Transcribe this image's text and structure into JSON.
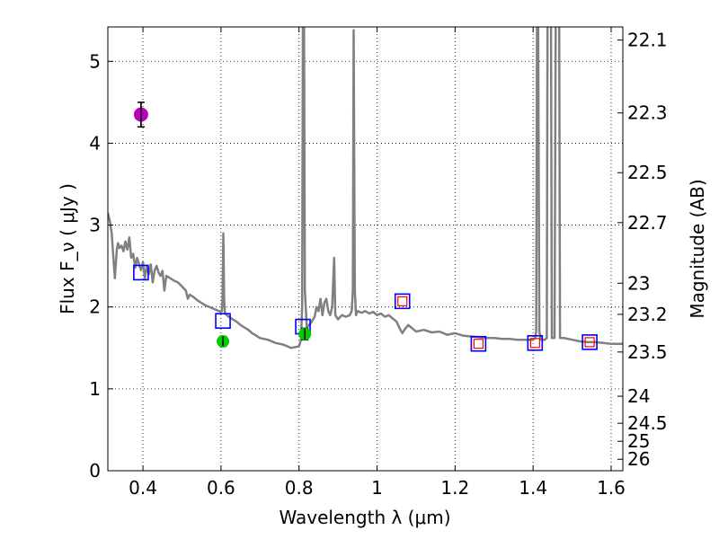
{
  "chart_data": {
    "type": "scatter",
    "xlabel": "Wavelength  λ (μm)",
    "ylabel": "Flux  F_ν  ( μJy )",
    "ylabel_right": "Magnitude (AB)",
    "xlim": [
      0.31,
      1.63
    ],
    "ylim": [
      0,
      5.42
    ],
    "grid": true,
    "x_ticks": [
      0.4,
      0.6,
      0.8,
      1.0,
      1.2,
      1.4,
      1.6
    ],
    "x_tick_labels": [
      "0.4",
      "0.6",
      "0.8",
      "1",
      "1.2",
      "1.4",
      "1.6"
    ],
    "y_ticks": [
      0,
      1,
      2,
      3,
      4,
      5
    ],
    "y_tick_labels": [
      "0",
      "1",
      "2",
      "3",
      "4",
      "5"
    ],
    "right_ticks": [
      {
        "label": "22.1",
        "flux": 5.26
      },
      {
        "label": "22.3",
        "flux": 4.37
      },
      {
        "label": "22.5",
        "flux": 3.64
      },
      {
        "label": "22.7",
        "flux": 3.03
      },
      {
        "label": "23",
        "flux": 2.29
      },
      {
        "label": "23.2",
        "flux": 1.91
      },
      {
        "label": "23.5",
        "flux": 1.45
      },
      {
        "label": "24",
        "flux": 0.91
      },
      {
        "label": "24.5",
        "flux": 0.58
      },
      {
        "label": "25",
        "flux": 0.36
      },
      {
        "label": "26",
        "flux": 0.14
      }
    ],
    "series": [
      {
        "name": "model SED",
        "kind": "line",
        "color": "#808080",
        "points": [
          [
            0.31,
            3.15
          ],
          [
            0.315,
            3.05
          ],
          [
            0.32,
            2.9
          ],
          [
            0.325,
            2.55
          ],
          [
            0.328,
            2.35
          ],
          [
            0.33,
            2.5
          ],
          [
            0.333,
            2.7
          ],
          [
            0.336,
            2.78
          ],
          [
            0.34,
            2.72
          ],
          [
            0.345,
            2.75
          ],
          [
            0.35,
            2.68
          ],
          [
            0.355,
            2.8
          ],
          [
            0.36,
            2.7
          ],
          [
            0.365,
            2.85
          ],
          [
            0.37,
            2.6
          ],
          [
            0.375,
            2.65
          ],
          [
            0.38,
            2.48
          ],
          [
            0.385,
            2.6
          ],
          [
            0.39,
            2.52
          ],
          [
            0.395,
            2.45
          ],
          [
            0.4,
            2.55
          ],
          [
            0.405,
            2.35
          ],
          [
            0.41,
            2.5
          ],
          [
            0.415,
            2.4
          ],
          [
            0.42,
            2.52
          ],
          [
            0.425,
            2.3
          ],
          [
            0.43,
            2.45
          ],
          [
            0.435,
            2.5
          ],
          [
            0.44,
            2.42
          ],
          [
            0.445,
            2.38
          ],
          [
            0.45,
            2.44
          ],
          [
            0.455,
            2.2
          ],
          [
            0.46,
            2.38
          ],
          [
            0.47,
            2.35
          ],
          [
            0.48,
            2.32
          ],
          [
            0.49,
            2.3
          ],
          [
            0.5,
            2.25
          ],
          [
            0.51,
            2.2
          ],
          [
            0.515,
            2.1
          ],
          [
            0.52,
            2.15
          ],
          [
            0.53,
            2.12
          ],
          [
            0.54,
            2.08
          ],
          [
            0.55,
            2.05
          ],
          [
            0.56,
            2.02
          ],
          [
            0.57,
            2.0
          ],
          [
            0.58,
            1.98
          ],
          [
            0.59,
            1.96
          ],
          [
            0.6,
            1.94
          ],
          [
            0.602,
            1.95
          ],
          [
            0.604,
            2.1
          ],
          [
            0.606,
            2.9
          ],
          [
            0.608,
            2.1
          ],
          [
            0.61,
            1.92
          ],
          [
            0.62,
            1.88
          ],
          [
            0.63,
            1.85
          ],
          [
            0.64,
            1.82
          ],
          [
            0.65,
            1.78
          ],
          [
            0.66,
            1.75
          ],
          [
            0.67,
            1.72
          ],
          [
            0.68,
            1.68
          ],
          [
            0.69,
            1.65
          ],
          [
            0.7,
            1.62
          ],
          [
            0.72,
            1.6
          ],
          [
            0.74,
            1.56
          ],
          [
            0.76,
            1.54
          ],
          [
            0.78,
            1.5
          ],
          [
            0.8,
            1.52
          ],
          [
            0.805,
            1.6
          ],
          [
            0.808,
            2.0
          ],
          [
            0.81,
            5.45
          ],
          [
            0.813,
            5.45
          ],
          [
            0.815,
            2.2
          ],
          [
            0.82,
            1.75
          ],
          [
            0.83,
            1.8
          ],
          [
            0.84,
            1.88
          ],
          [
            0.845,
            2.0
          ],
          [
            0.85,
            1.95
          ],
          [
            0.855,
            2.1
          ],
          [
            0.86,
            1.9
          ],
          [
            0.865,
            2.05
          ],
          [
            0.87,
            2.1
          ],
          [
            0.875,
            1.95
          ],
          [
            0.88,
            1.9
          ],
          [
            0.885,
            2.0
          ],
          [
            0.89,
            2.6
          ],
          [
            0.893,
            1.9
          ],
          [
            0.9,
            1.85
          ],
          [
            0.91,
            1.9
          ],
          [
            0.92,
            1.88
          ],
          [
            0.93,
            1.9
          ],
          [
            0.935,
            1.95
          ],
          [
            0.938,
            2.2
          ],
          [
            0.94,
            5.38
          ],
          [
            0.943,
            2.2
          ],
          [
            0.946,
            1.9
          ],
          [
            0.95,
            1.95
          ],
          [
            0.96,
            1.93
          ],
          [
            0.97,
            1.95
          ],
          [
            0.98,
            1.92
          ],
          [
            0.99,
            1.94
          ],
          [
            1.0,
            1.9
          ],
          [
            1.01,
            1.92
          ],
          [
            1.02,
            1.88
          ],
          [
            1.03,
            1.9
          ],
          [
            1.04,
            1.86
          ],
          [
            1.05,
            1.82
          ],
          [
            1.06,
            1.72
          ],
          [
            1.065,
            1.68
          ],
          [
            1.07,
            1.72
          ],
          [
            1.08,
            1.78
          ],
          [
            1.1,
            1.7
          ],
          [
            1.12,
            1.72
          ],
          [
            1.14,
            1.69
          ],
          [
            1.16,
            1.7
          ],
          [
            1.18,
            1.66
          ],
          [
            1.2,
            1.68
          ],
          [
            1.22,
            1.65
          ],
          [
            1.24,
            1.64
          ],
          [
            1.26,
            1.63
          ],
          [
            1.28,
            1.62
          ],
          [
            1.3,
            1.62
          ],
          [
            1.32,
            1.61
          ],
          [
            1.34,
            1.61
          ],
          [
            1.36,
            1.6
          ],
          [
            1.38,
            1.6
          ],
          [
            1.4,
            1.6
          ],
          [
            1.405,
            1.62
          ],
          [
            1.408,
            1.7
          ],
          [
            1.41,
            5.45
          ],
          [
            1.413,
            5.45
          ],
          [
            1.416,
            1.7
          ],
          [
            1.42,
            1.6
          ],
          [
            1.43,
            1.6
          ],
          [
            1.435,
            1.62
          ],
          [
            1.437,
            5.45
          ],
          [
            1.446,
            5.45
          ],
          [
            1.448,
            1.62
          ],
          [
            1.455,
            1.62
          ],
          [
            1.458,
            5.45
          ],
          [
            1.467,
            5.45
          ],
          [
            1.469,
            1.62
          ],
          [
            1.48,
            1.62
          ],
          [
            1.5,
            1.6
          ],
          [
            1.52,
            1.58
          ],
          [
            1.54,
            1.57
          ],
          [
            1.56,
            1.57
          ],
          [
            1.58,
            1.56
          ],
          [
            1.6,
            1.55
          ],
          [
            1.63,
            1.55
          ]
        ]
      },
      {
        "name": "blue squares",
        "kind": "marker",
        "marker": "square-open",
        "color": "#0000ff",
        "x": [
          0.395,
          0.605,
          0.81,
          1.065,
          1.26,
          1.405,
          1.545
        ],
        "y": [
          2.42,
          1.83,
          1.76,
          2.07,
          1.55,
          1.56,
          1.57
        ]
      },
      {
        "name": "red squares",
        "kind": "marker",
        "marker": "square-open",
        "color": "#ff0000",
        "x": [
          1.065,
          1.26,
          1.405,
          1.545
        ],
        "y": [
          2.07,
          1.55,
          1.56,
          1.57
        ]
      },
      {
        "name": "green points",
        "kind": "marker",
        "marker": "circle",
        "color": "#00cc00",
        "x": [
          0.605,
          0.815
        ],
        "y": [
          1.58,
          1.67
        ],
        "yerr": [
          0.06,
          0.07
        ]
      },
      {
        "name": "magenta point",
        "kind": "marker",
        "marker": "circle",
        "color": "#bb00bb",
        "x": [
          0.395
        ],
        "y": [
          4.35
        ],
        "yerr": [
          0.15
        ]
      }
    ]
  }
}
